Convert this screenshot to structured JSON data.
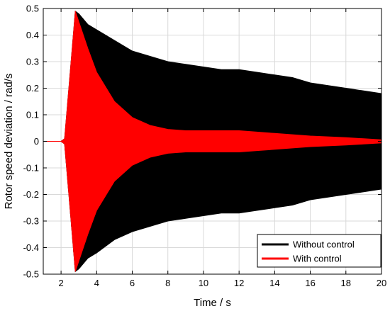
{
  "chart_data": {
    "type": "area",
    "xlabel": "Time / s",
    "ylabel": "Rotor speed deviation / rad/s",
    "xlim": [
      1,
      20
    ],
    "ylim": [
      -0.5,
      0.5
    ],
    "xticks": [
      2,
      4,
      6,
      8,
      10,
      12,
      14,
      16,
      18,
      20
    ],
    "yticks": [
      -0.5,
      -0.4,
      -0.3,
      -0.2,
      -0.1,
      0,
      0.1,
      0.2,
      0.3,
      0.4,
      0.5
    ],
    "grid": true,
    "legend_position": "bottom-right",
    "series": [
      {
        "name": "Without control",
        "color": "#000000",
        "x": [
          1,
          2,
          2.2,
          2.5,
          2.8,
          3,
          3.5,
          4,
          5,
          6,
          7,
          8,
          9,
          10,
          11,
          12,
          13,
          14,
          15,
          16,
          17,
          18,
          19,
          20
        ],
        "upper": [
          0,
          0,
          0.01,
          0.25,
          0.49,
          0.48,
          0.44,
          0.42,
          0.38,
          0.34,
          0.32,
          0.3,
          0.29,
          0.28,
          0.27,
          0.27,
          0.26,
          0.25,
          0.24,
          0.22,
          0.21,
          0.2,
          0.19,
          0.18
        ],
        "lower": [
          0,
          0,
          -0.01,
          -0.25,
          -0.49,
          -0.48,
          -0.44,
          -0.42,
          -0.37,
          -0.34,
          -0.32,
          -0.3,
          -0.29,
          -0.28,
          -0.27,
          -0.27,
          -0.26,
          -0.25,
          -0.24,
          -0.22,
          -0.21,
          -0.2,
          -0.19,
          -0.18
        ]
      },
      {
        "name": "With control",
        "color": "#ff0000",
        "x": [
          1,
          2,
          2.2,
          2.5,
          2.8,
          3,
          3.5,
          4,
          5,
          6,
          7,
          8,
          9,
          10,
          11,
          12,
          13,
          14,
          15,
          16,
          17,
          18,
          19,
          20
        ],
        "upper": [
          0,
          0,
          0.01,
          0.25,
          0.49,
          0.45,
          0.35,
          0.26,
          0.15,
          0.09,
          0.06,
          0.045,
          0.04,
          0.04,
          0.04,
          0.04,
          0.035,
          0.03,
          0.025,
          0.02,
          0.017,
          0.014,
          0.01,
          0.006
        ],
        "lower": [
          0,
          0,
          -0.01,
          -0.25,
          -0.49,
          -0.45,
          -0.35,
          -0.26,
          -0.15,
          -0.09,
          -0.06,
          -0.045,
          -0.04,
          -0.04,
          -0.04,
          -0.04,
          -0.035,
          -0.03,
          -0.025,
          -0.02,
          -0.017,
          -0.014,
          -0.01,
          -0.006
        ]
      }
    ]
  }
}
